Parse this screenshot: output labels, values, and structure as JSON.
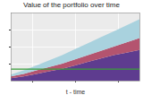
{
  "chart_data": {
    "type": "area",
    "title": "Value of the portfolio over time",
    "x_label": "t - time",
    "stacked": true,
    "grid": true,
    "tick_labels": false,
    "x": [
      0,
      3,
      6,
      9,
      12,
      15,
      18,
      21,
      24,
      27,
      30
    ],
    "xlim": [
      0,
      30
    ],
    "xticks": [
      5,
      15,
      25
    ],
    "ylim": [
      0,
      8
    ],
    "yticks": [
      2,
      4,
      6
    ],
    "series": [
      {
        "color": "#5e3c8f",
        "values": [
          0.3,
          0.5,
          0.8,
          1.1,
          1.4,
          1.8,
          2.2,
          2.6,
          3.0,
          3.3,
          3.6
        ]
      },
      {
        "color": "#b4546f",
        "values": [
          0.2,
          0.3,
          0.4,
          0.5,
          0.6,
          0.7,
          0.8,
          0.9,
          1.0,
          1.2,
          1.4
        ]
      },
      {
        "color": "#a9d2de",
        "values": [
          0.2,
          0.4,
          0.6,
          0.8,
          1.0,
          1.2,
          1.4,
          1.6,
          1.8,
          2.0,
          2.2
        ]
      },
      {
        "type": "line",
        "color": "#3a9e3a",
        "values": [
          1.4,
          1.4,
          1.4,
          1.4,
          1.4,
          1.4,
          1.4,
          1.4,
          1.4,
          1.4,
          1.4
        ]
      }
    ]
  }
}
